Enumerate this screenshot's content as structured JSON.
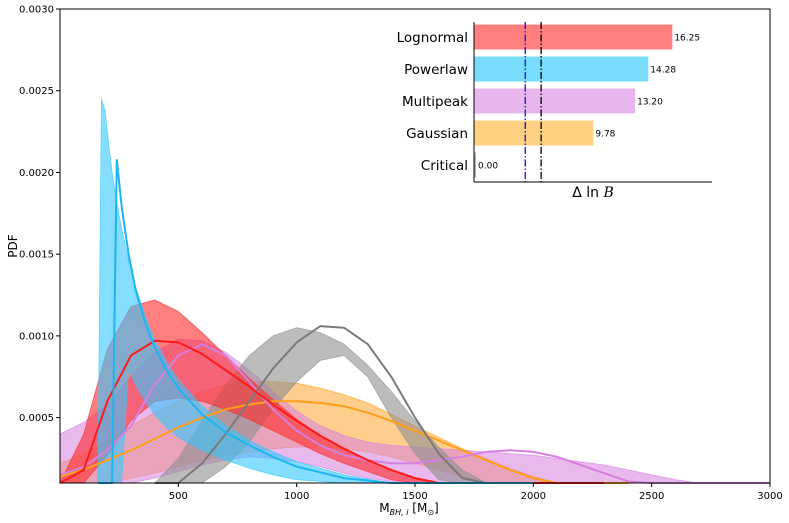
{
  "chart_data": [
    {
      "type": "area",
      "xlabel": "M",
      "xlabel_sub": "BH, i",
      "xlabel_unit": "[M",
      "xlabel_unit_sub": "⊙",
      "xlabel_unit_close": "]",
      "ylabel": "PDF",
      "xlim": [
        0,
        3000
      ],
      "ylim": [
        0.0001,
        0.003
      ],
      "xticks": [
        500,
        1000,
        1500,
        2000,
        2500,
        3000
      ],
      "yticks": [
        0.0005,
        0.001,
        0.0015,
        0.002,
        0.0025,
        0.003
      ],
      "ytick_labels": [
        "0.0005",
        "0.0010",
        "0.0015",
        "0.0020",
        "0.0025",
        "0.0030"
      ],
      "series": [
        {
          "name": "Gaussian",
          "color": "#ff9e1a",
          "line_color": "#ff9e1a",
          "alpha": 0.5,
          "x": [
            0,
            100,
            200,
            300,
            400,
            500,
            600,
            700,
            800,
            900,
            1000,
            1100,
            1200,
            1300,
            1400,
            1500,
            1600,
            1700,
            1800,
            1900,
            2000,
            2100,
            2200,
            2300,
            2400
          ],
          "upper": [
            0.00022,
            0.00028,
            0.00036,
            0.00045,
            0.00053,
            0.0006,
            0.00066,
            0.0007,
            0.00072,
            0.00072,
            0.00071,
            0.00068,
            0.00064,
            0.00059,
            0.00052,
            0.00045,
            0.00038,
            0.00031,
            0.00025,
            0.00019,
            0.00014,
            0.0001,
            7e-05,
            4e-05,
            2e-05
          ],
          "lower": [
            6e-05,
            8e-05,
            0.0001,
            0.00013,
            0.00016,
            0.0002,
            0.00024,
            0.00027,
            0.00029,
            0.00031,
            0.00032,
            0.00032,
            0.00031,
            0.00029,
            0.00026,
            0.00022,
            0.00018,
            0.00014,
            0.0001,
            7e-05,
            5e-05,
            3e-05,
            2e-05,
            1e-05,
            0.0
          ],
          "median": [
            0.00014,
            0.00018,
            0.00024,
            0.0003,
            0.00037,
            0.00044,
            0.0005,
            0.00055,
            0.00058,
            0.0006,
            0.0006,
            0.00059,
            0.00057,
            0.00053,
            0.00048,
            0.00042,
            0.00036,
            0.0003,
            0.00024,
            0.00018,
            0.00013,
            9e-05,
            6e-05,
            4e-05,
            2e-05
          ]
        },
        {
          "name": "Multipeak",
          "color": "#d77fe0",
          "line_color": "#d77fe0",
          "alpha": 0.55,
          "x": [
            0,
            100,
            200,
            300,
            400,
            500,
            600,
            700,
            800,
            900,
            1000,
            1100,
            1200,
            1300,
            1400,
            1500,
            1600,
            1700,
            1800,
            1900,
            2000,
            2100,
            2200,
            2300,
            2400,
            2500,
            2600,
            2700,
            2800,
            2900,
            3000
          ],
          "upper": [
            0.0004,
            0.00047,
            0.00058,
            0.00075,
            0.0009,
            0.00098,
            0.00097,
            0.0009,
            0.00079,
            0.00066,
            0.00054,
            0.00045,
            0.00039,
            0.00035,
            0.00033,
            0.00032,
            0.00031,
            0.0003,
            0.00029,
            0.00028,
            0.00027,
            0.00025,
            0.00023,
            0.00021,
            0.00018,
            0.00015,
            0.00012,
            8e-05,
            5e-05,
            2e-05,
            0.0
          ],
          "lower": [
            3e-05,
            4e-05,
            6e-05,
            9e-05,
            0.00013,
            0.00017,
            0.00021,
            0.00024,
            0.00026,
            0.00025,
            0.00023,
            0.0002,
            0.00016,
            0.00013,
            0.00011,
            9e-05,
            8e-05,
            7e-05,
            6e-05,
            5e-05,
            4e-05,
            3e-05,
            2e-05,
            1e-05,
            0.0,
            0.0,
            0.0,
            0.0,
            0.0,
            0.0,
            0.0
          ],
          "median": [
            0.00015,
            0.0002,
            0.0003,
            0.00045,
            0.0007,
            0.00088,
            0.00095,
            0.00088,
            0.00072,
            0.00055,
            0.00042,
            0.00033,
            0.00027,
            0.00024,
            0.00022,
            0.00022,
            0.00024,
            0.00026,
            0.00029,
            0.0003,
            0.00029,
            0.00026,
            0.00021,
            0.00016,
            0.00011,
            7e-05,
            4e-05,
            2e-05,
            1e-05,
            0.0,
            0.0
          ]
        },
        {
          "name": "Critical",
          "color": "#909090",
          "line_color": "#7a7a7a",
          "alpha": 0.6,
          "x": [
            400,
            500,
            600,
            700,
            800,
            900,
            1000,
            1100,
            1200,
            1300,
            1400,
            1500,
            1600,
            1700,
            1800,
            1900,
            2000
          ],
          "upper": [
            5e-05,
            0.00025,
            0.00048,
            0.0007,
            0.00088,
            0.001,
            0.00105,
            0.00102,
            0.00095,
            0.00082,
            0.00066,
            0.00048,
            0.00032,
            0.00018,
            8e-05,
            3e-05,
            0.0
          ],
          "lower": [
            0.0,
            3e-05,
            0.0001,
            0.0002,
            0.00035,
            0.00055,
            0.00072,
            0.00085,
            0.00088,
            0.00075,
            0.0005,
            0.00028,
            0.00012,
            4e-05,
            1e-05,
            0.0,
            0.0
          ],
          "median": [
            1e-05,
            0.0001,
            0.00022,
            0.0004,
            0.0006,
            0.0008,
            0.00096,
            0.00106,
            0.00105,
            0.00095,
            0.00075,
            0.0005,
            0.00028,
            0.00013,
            5e-05,
            2e-05,
            0.0
          ]
        },
        {
          "name": "Lognormal",
          "color": "#ff2a2a",
          "line_color": "#ff1a1a",
          "alpha": 0.6,
          "x": [
            0,
            100,
            200,
            300,
            400,
            500,
            600,
            700,
            800,
            900,
            1000,
            1100,
            1200,
            1300,
            1400,
            1500,
            1600,
            1700,
            1800,
            1900,
            2000,
            2100,
            2200,
            2300
          ],
          "upper": [
            3e-05,
            0.0004,
            0.00092,
            0.00118,
            0.00122,
            0.00115,
            0.00102,
            0.00088,
            0.00074,
            0.00061,
            0.00049,
            0.00039,
            0.00031,
            0.00024,
            0.00018,
            0.00013,
            0.0001,
            7e-05,
            5e-05,
            3e-05,
            2e-05,
            1e-05,
            0.0,
            0.0
          ],
          "lower": [
            0.0,
            8e-05,
            0.00027,
            0.00048,
            0.0006,
            0.00062,
            0.0006,
            0.00055,
            0.00049,
            0.00042,
            0.00035,
            0.00028,
            0.00022,
            0.00017,
            0.00012,
            9e-05,
            6e-05,
            4e-05,
            2e-05,
            1e-05,
            0.0,
            0.0,
            0.0,
            0.0
          ],
          "median": [
            1e-05,
            0.00018,
            0.0006,
            0.00088,
            0.00097,
            0.00096,
            0.00089,
            0.00079,
            0.00069,
            0.00058,
            0.00048,
            0.00039,
            0.00031,
            0.00024,
            0.00018,
            0.00013,
            9e-05,
            6e-05,
            4e-05,
            2e-05,
            1e-05,
            0.0,
            0.0,
            0.0
          ]
        },
        {
          "name": "Powerlaw",
          "color": "#33c8ff",
          "line_color": "#1eb4f0",
          "alpha": 0.6,
          "x": [
            160,
            175,
            190,
            200,
            220,
            240,
            260,
            290,
            320,
            360,
            400,
            450,
            500,
            600,
            700,
            800,
            900,
            1000,
            1200,
            1400,
            1600,
            1800,
            2000
          ],
          "upper": [
            0.0,
            0.00245,
            0.00238,
            0.00225,
            0.002,
            0.00182,
            0.00166,
            0.00146,
            0.0013,
            0.00112,
            0.00098,
            0.00084,
            0.00073,
            0.00057,
            0.00045,
            0.00036,
            0.00029,
            0.00023,
            0.00015,
            0.0001,
            6e-05,
            3e-05,
            1e-05
          ],
          "lower": [
            0.0,
            0.0,
            0.0,
            0.0,
            0.0,
            0.0,
            0.0,
            0.0008,
            0.0007,
            0.0006,
            0.00052,
            0.00044,
            0.00038,
            0.0003,
            0.00024,
            0.00019,
            0.00015,
            0.00012,
            7e-05,
            4e-05,
            2e-05,
            1e-05,
            0.0
          ],
          "median": [
            0.0,
            0.0,
            0.0,
            0.0,
            0.0,
            0.00208,
            0.0018,
            0.0015,
            0.00128,
            0.00108,
            0.00093,
            0.00079,
            0.00068,
            0.00052,
            0.00041,
            0.00033,
            0.00026,
            0.0002,
            0.00013,
            8e-05,
            5e-05,
            2e-05,
            1e-05
          ]
        }
      ]
    },
    {
      "type": "bar",
      "orientation": "horizontal",
      "xlabel": "Δ ln ",
      "xlabel_symbol": "B",
      "categories": [
        "Lognormal",
        "Powerlaw",
        "Multipeak",
        "Gaussian",
        "Critical"
      ],
      "values": [
        16.25,
        14.28,
        13.2,
        9.78,
        0.0
      ],
      "value_labels": [
        "16.25",
        "14.28",
        "13.20",
        "9.78",
        "0.00"
      ],
      "colors": [
        "#ff7f7f",
        "#77dbfb",
        "#e9b5ee",
        "#ffd080",
        "#b0b0b0"
      ],
      "xlim": [
        0,
        19.5
      ],
      "reference_lines": [
        {
          "value": 4.2,
          "color": "#1010ee",
          "style": "dashdot"
        },
        {
          "value": 5.5,
          "color": "#000000",
          "style": "dashdot"
        }
      ]
    }
  ]
}
